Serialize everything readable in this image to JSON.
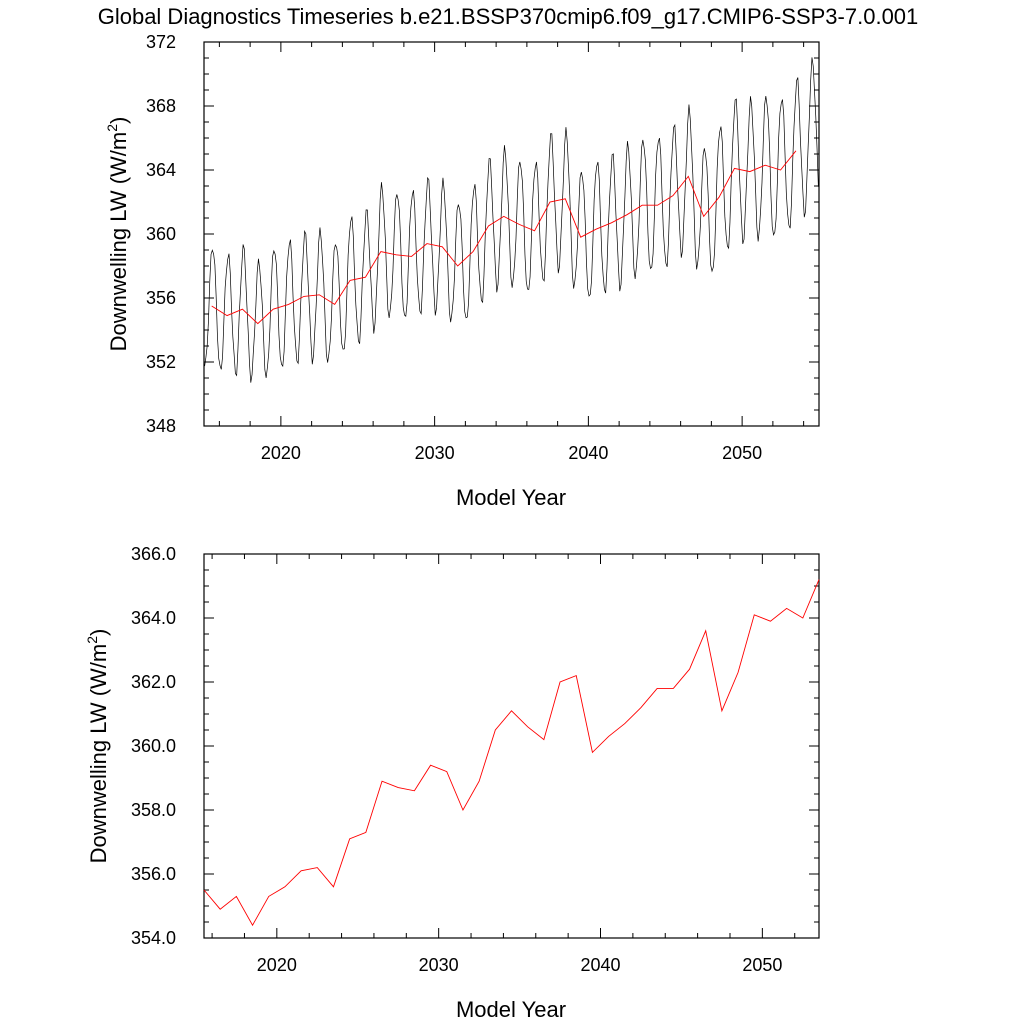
{
  "title": "Global Diagnostics Timeseries b.e21.BSSP370cmip6.f09_g17.CMIP6-SSP3-7.0.001",
  "colors": {
    "monthly": "#000000",
    "annual": "#ff0000",
    "axis": "#000000"
  },
  "chart_data": [
    {
      "type": "line",
      "xlabel": "Model Year",
      "ylabel": "Downwelling LW (W/m",
      "ylabel_sup": "2",
      "ylabel_close": ")",
      "xlim": [
        2015,
        2055
      ],
      "ylim": [
        348,
        372
      ],
      "x_ticks": [
        2020,
        2030,
        2040,
        2050
      ],
      "y_ticks": [
        "348",
        "352",
        "356",
        "360",
        "364",
        "368",
        "372"
      ],
      "monthly_series": {
        "start_year": 2015,
        "amplitude_by_year": [
          3.8,
          3.8,
          3.9,
          3.8,
          3.9,
          4.0,
          3.9,
          4.0,
          3.9,
          4.0,
          4.0,
          4.1,
          4.0,
          4.1,
          4.0,
          4.1,
          4.0,
          4.1,
          4.1,
          4.2,
          4.1,
          4.2,
          4.2,
          4.3,
          4.2,
          4.3,
          4.2,
          4.3,
          4.2,
          4.3,
          4.2,
          4.3,
          4.3,
          4.4,
          4.3,
          4.4,
          4.4,
          4.5,
          4.4,
          4.5
        ]
      },
      "series": [
        {
          "values": [
            {
              "x": 2015.5,
              "y": 355.5
            },
            {
              "x": 2016.5,
              "y": 354.9
            },
            {
              "x": 2017.5,
              "y": 355.3
            },
            {
              "x": 2018.5,
              "y": 354.4
            },
            {
              "x": 2019.5,
              "y": 355.3
            },
            {
              "x": 2020.5,
              "y": 355.6
            },
            {
              "x": 2021.5,
              "y": 356.1
            },
            {
              "x": 2022.5,
              "y": 356.2
            },
            {
              "x": 2023.5,
              "y": 355.6
            },
            {
              "x": 2024.5,
              "y": 357.1
            },
            {
              "x": 2025.5,
              "y": 357.3
            },
            {
              "x": 2026.5,
              "y": 358.9
            },
            {
              "x": 2027.5,
              "y": 358.7
            },
            {
              "x": 2028.5,
              "y": 358.6
            },
            {
              "x": 2029.5,
              "y": 359.4
            },
            {
              "x": 2030.5,
              "y": 359.2
            },
            {
              "x": 2031.5,
              "y": 358.0
            },
            {
              "x": 2032.5,
              "y": 358.9
            },
            {
              "x": 2033.5,
              "y": 360.5
            },
            {
              "x": 2034.5,
              "y": 361.1
            },
            {
              "x": 2035.5,
              "y": 360.6
            },
            {
              "x": 2036.5,
              "y": 360.2
            },
            {
              "x": 2037.5,
              "y": 362.0
            },
            {
              "x": 2038.5,
              "y": 362.2
            },
            {
              "x": 2039.5,
              "y": 359.8
            },
            {
              "x": 2040.5,
              "y": 360.3
            },
            {
              "x": 2041.5,
              "y": 360.7
            },
            {
              "x": 2042.5,
              "y": 361.2
            },
            {
              "x": 2043.5,
              "y": 361.8
            },
            {
              "x": 2044.5,
              "y": 361.8
            },
            {
              "x": 2045.5,
              "y": 362.4
            },
            {
              "x": 2046.5,
              "y": 363.6
            },
            {
              "x": 2047.5,
              "y": 361.1
            },
            {
              "x": 2048.5,
              "y": 362.3
            },
            {
              "x": 2049.5,
              "y": 364.1
            },
            {
              "x": 2050.5,
              "y": 363.9
            },
            {
              "x": 2051.5,
              "y": 364.3
            },
            {
              "x": 2052.5,
              "y": 364.0
            },
            {
              "x": 2053.5,
              "y": 365.2
            }
          ]
        }
      ]
    },
    {
      "type": "line",
      "xlabel": "Model Year",
      "ylabel": "Downwelling LW (W/m",
      "ylabel_sup": "2",
      "ylabel_close": ")",
      "xlim": [
        2015.5,
        2053.5
      ],
      "ylim": [
        354,
        366
      ],
      "x_ticks": [
        2020,
        2030,
        2040,
        2050
      ],
      "y_ticks": [
        "354.0",
        "356.0",
        "358.0",
        "360.0",
        "362.0",
        "364.0",
        "366.0"
      ],
      "series": [
        {
          "values": [
            {
              "x": 2015.5,
              "y": 355.5
            },
            {
              "x": 2016.5,
              "y": 354.9
            },
            {
              "x": 2017.5,
              "y": 355.3
            },
            {
              "x": 2018.5,
              "y": 354.4
            },
            {
              "x": 2019.5,
              "y": 355.3
            },
            {
              "x": 2020.5,
              "y": 355.6
            },
            {
              "x": 2021.5,
              "y": 356.1
            },
            {
              "x": 2022.5,
              "y": 356.2
            },
            {
              "x": 2023.5,
              "y": 355.6
            },
            {
              "x": 2024.5,
              "y": 357.1
            },
            {
              "x": 2025.5,
              "y": 357.3
            },
            {
              "x": 2026.5,
              "y": 358.9
            },
            {
              "x": 2027.5,
              "y": 358.7
            },
            {
              "x": 2028.5,
              "y": 358.6
            },
            {
              "x": 2029.5,
              "y": 359.4
            },
            {
              "x": 2030.5,
              "y": 359.2
            },
            {
              "x": 2031.5,
              "y": 358.0
            },
            {
              "x": 2032.5,
              "y": 358.9
            },
            {
              "x": 2033.5,
              "y": 360.5
            },
            {
              "x": 2034.5,
              "y": 361.1
            },
            {
              "x": 2035.5,
              "y": 360.6
            },
            {
              "x": 2036.5,
              "y": 360.2
            },
            {
              "x": 2037.5,
              "y": 362.0
            },
            {
              "x": 2038.5,
              "y": 362.2
            },
            {
              "x": 2039.5,
              "y": 359.8
            },
            {
              "x": 2040.5,
              "y": 360.3
            },
            {
              "x": 2041.5,
              "y": 360.7
            },
            {
              "x": 2042.5,
              "y": 361.2
            },
            {
              "x": 2043.5,
              "y": 361.8
            },
            {
              "x": 2044.5,
              "y": 361.8
            },
            {
              "x": 2045.5,
              "y": 362.4
            },
            {
              "x": 2046.5,
              "y": 363.6
            },
            {
              "x": 2047.5,
              "y": 361.1
            },
            {
              "x": 2048.5,
              "y": 362.3
            },
            {
              "x": 2049.5,
              "y": 364.1
            },
            {
              "x": 2050.5,
              "y": 363.9
            },
            {
              "x": 2051.5,
              "y": 364.3
            },
            {
              "x": 2052.5,
              "y": 364.0
            },
            {
              "x": 2053.5,
              "y": 365.2
            }
          ]
        }
      ]
    }
  ]
}
